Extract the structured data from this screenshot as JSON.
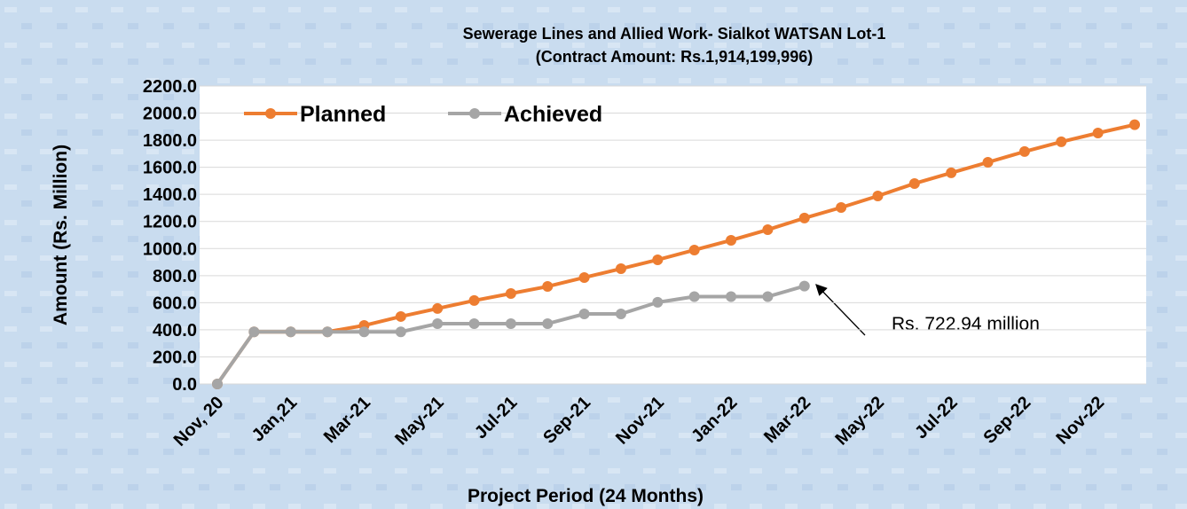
{
  "chart_data": {
    "type": "line",
    "title": "Sewerage Lines and Allied Work- Sialkot WATSAN Lot-1",
    "subtitle": "(Contract Amount: Rs.1,914,199,996)",
    "x_label": "Project Period (24 Months)",
    "y_label": "Amount (Rs. Million)",
    "categories": [
      "Nov, 20",
      null,
      "Jan,21",
      null,
      "Mar-21",
      null,
      "May-21",
      null,
      "Jul-21",
      null,
      "Sep-21",
      null,
      "Nov-21",
      null,
      "Jan-22",
      null,
      "Mar-22",
      null,
      "May-22",
      null,
      "Jul-22",
      null,
      "Sep-22",
      null,
      "Nov-22",
      null
    ],
    "series": [
      {
        "name": "Planned",
        "color": "#ed7d31",
        "values": [
          0,
          385,
          385,
          385,
          432,
          498,
          557,
          616,
          668,
          720,
          786,
          851,
          917,
          989,
          1061,
          1139,
          1225,
          1303,
          1388,
          1480,
          1559,
          1637,
          1716,
          1788,
          1853,
          1914
        ]
      },
      {
        "name": "Achieved",
        "color": "#a5a5a5",
        "values": [
          0,
          385,
          385,
          385,
          385,
          385,
          445,
          445,
          445,
          445,
          517,
          517,
          603,
          645,
          645,
          645,
          722.94,
          null,
          null,
          null,
          null,
          null,
          null,
          null,
          null,
          null
        ]
      }
    ],
    "annotation": "Rs. 722.94 million",
    "ylim": [
      0,
      2200
    ],
    "yticks": [
      {
        "value": 0,
        "label": "0.0"
      },
      {
        "value": 200,
        "label": "200.0"
      },
      {
        "value": 400,
        "label": "400.0"
      },
      {
        "value": 600,
        "label": "600.0"
      },
      {
        "value": 800,
        "label": "800.0"
      },
      {
        "value": 1000,
        "label": "1000.0"
      },
      {
        "value": 1200,
        "label": "1200.0"
      },
      {
        "value": 1400,
        "label": "1400.0"
      },
      {
        "value": 1600,
        "label": "1600.0"
      },
      {
        "value": 1800,
        "label": "1800.0"
      },
      {
        "value": 2000,
        "label": "2000.0"
      },
      {
        "value": 2200,
        "label": "2200.0"
      }
    ],
    "grid": true,
    "legend": "top-left"
  }
}
